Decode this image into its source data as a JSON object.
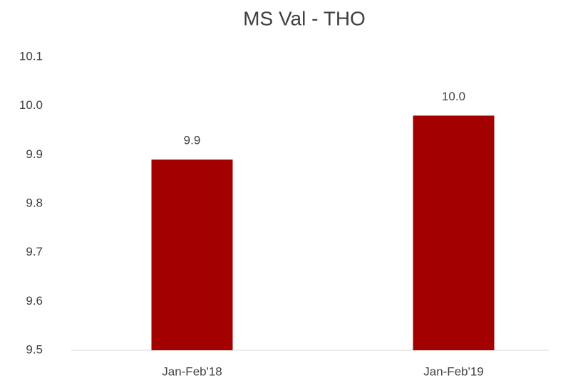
{
  "chart_data": {
    "type": "bar",
    "title": "MS Val - THO",
    "categories": [
      "Jan-Feb'18",
      "Jan-Feb'19"
    ],
    "values": [
      9.89,
      9.98
    ],
    "value_labels": [
      "9.9",
      "10.0"
    ],
    "color": "#a30000",
    "ylim": [
      9.5,
      10.1
    ],
    "yticks": [
      9.5,
      9.6,
      9.7,
      9.8,
      9.9,
      {
        "value": 10,
        "label": "10.0"
      },
      10.1
    ],
    "grid": false
  }
}
